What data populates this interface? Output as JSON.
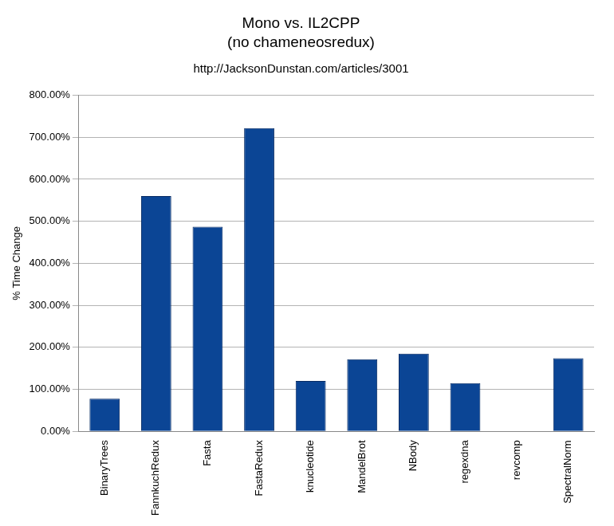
{
  "chart_data": {
    "type": "bar",
    "title": [
      "Mono vs. IL2CPP",
      "(no chameneosredux)"
    ],
    "subtitle": "http://JacksonDunstan.com/articles/3001",
    "y_label": "% Time Change",
    "categories": [
      "BinaryTrees",
      "FannkuchRedux",
      "Fasta",
      "FastaRedux",
      "knucleotide",
      "MandelBrot",
      "NBody",
      "regexdna",
      "revcomp",
      "SpectralNorm"
    ],
    "values": [
      78,
      560,
      487,
      722,
      120,
      172,
      185,
      115,
      0,
      174
    ],
    "color": "#0b4595",
    "ylim": [
      0,
      800
    ],
    "yticks": [
      {
        "value": 0,
        "label": "0.00%"
      },
      {
        "value": 100,
        "label": "100.00%"
      },
      {
        "value": 200,
        "label": "200.00%"
      },
      {
        "value": 300,
        "label": "300.00%"
      },
      {
        "value": 400,
        "label": "400.00%"
      },
      {
        "value": 500,
        "label": "500.00%"
      },
      {
        "value": 600,
        "label": "600.00%"
      },
      {
        "value": 700,
        "label": "700.00%"
      },
      {
        "value": 800,
        "label": "800.00%"
      }
    ],
    "grid": true
  }
}
